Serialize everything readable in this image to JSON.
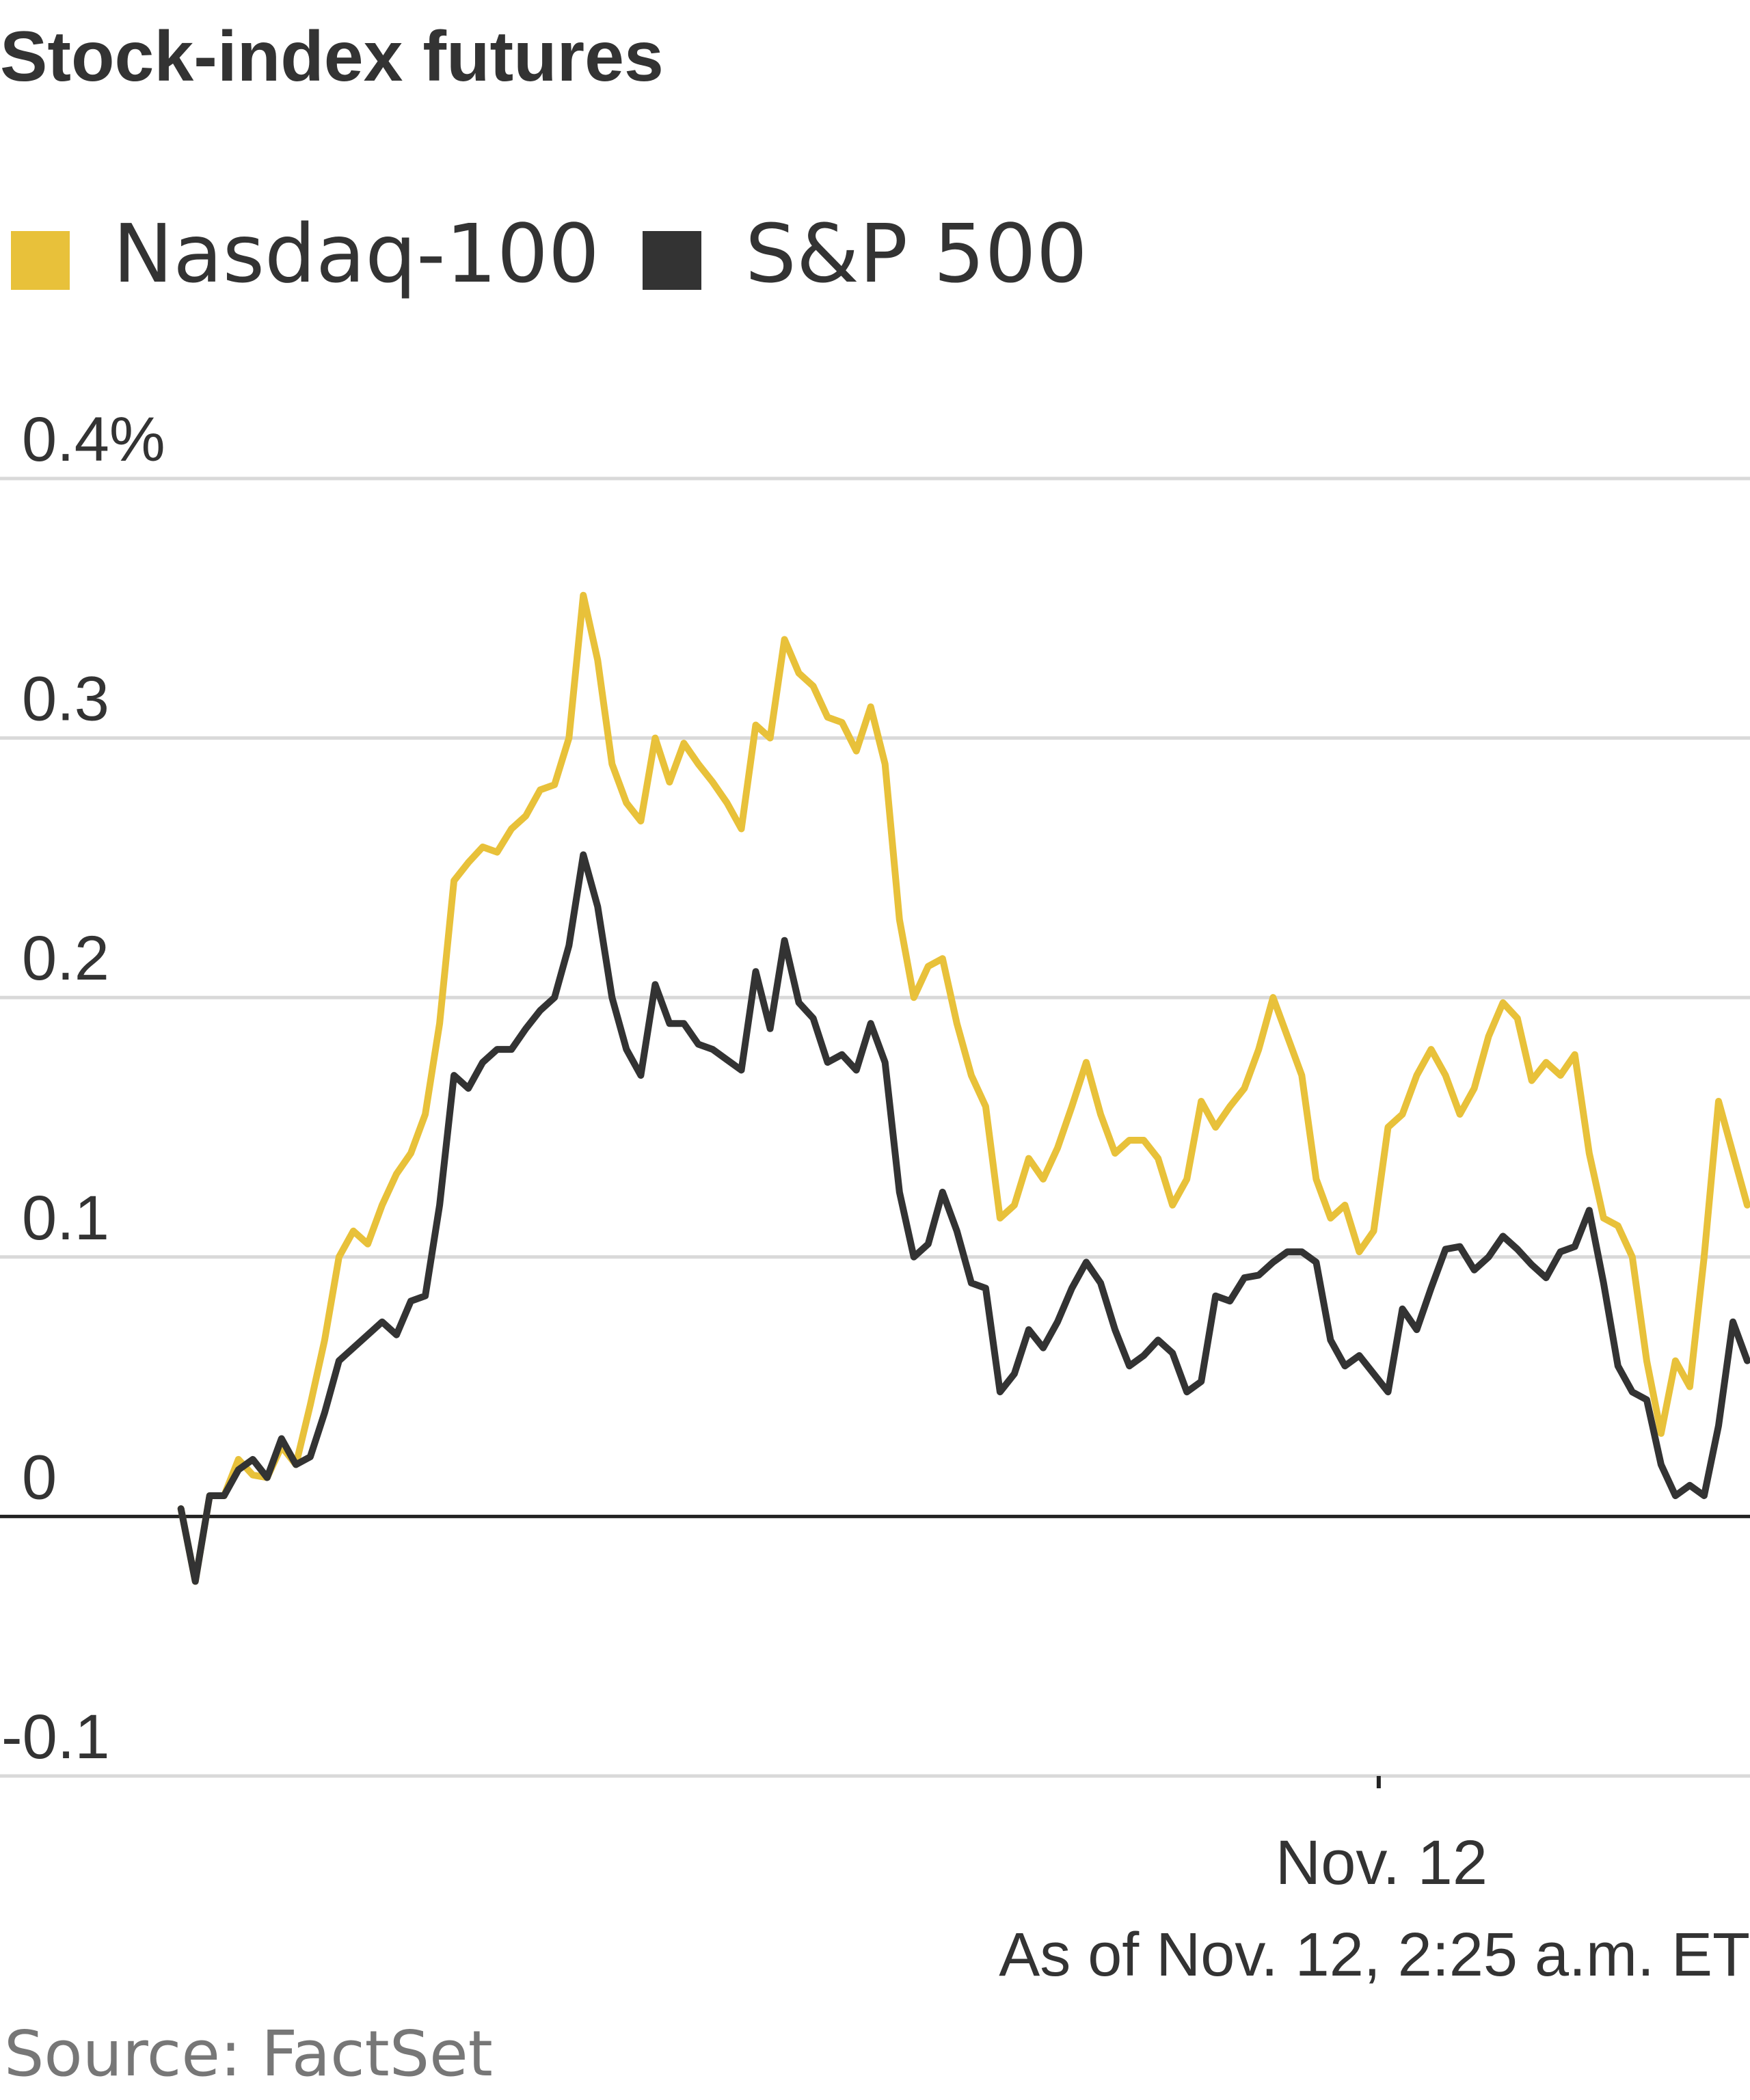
{
  "chart_data": {
    "type": "line",
    "title": "Stock-index futures",
    "ylabel": "",
    "xlabel": "",
    "ylim": [
      -0.1,
      0.4
    ],
    "yticks": [
      {
        "value": 0.4,
        "label": "0.4%"
      },
      {
        "value": 0.3,
        "label": "0.3"
      },
      {
        "value": 0.2,
        "label": "0.2"
      },
      {
        "value": 0.1,
        "label": "0.1"
      },
      {
        "value": 0,
        "label": "0"
      },
      {
        "value": -0.1,
        "label": "-0.1"
      }
    ],
    "xrange": [
      -0.2,
      170
    ],
    "xticks": [
      {
        "value": 130,
        "label": "Nov. 12"
      }
    ],
    "series": [
      {
        "name": "Nasdaq-100",
        "color": "#e8c13a",
        "values": [
          0.003,
          -0.025,
          0.008,
          0.008,
          0.022,
          0.016,
          0.015,
          0.027,
          0.02,
          0.043,
          0.068,
          0.1,
          0.11,
          0.105,
          0.12,
          0.132,
          0.14,
          0.155,
          0.19,
          0.245,
          0.252,
          0.258,
          0.256,
          0.265,
          0.27,
          0.28,
          0.282,
          0.3,
          0.355,
          0.33,
          0.29,
          0.275,
          0.268,
          0.3,
          0.283,
          0.298,
          0.29,
          0.283,
          0.275,
          0.265,
          0.305,
          0.3,
          0.338,
          0.325,
          0.32,
          0.308,
          0.306,
          0.295,
          0.312,
          0.29,
          0.23,
          0.2,
          0.212,
          0.215,
          0.19,
          0.17,
          0.158,
          0.115,
          0.12,
          0.138,
          0.13,
          0.142,
          0.158,
          0.175,
          0.155,
          0.14,
          0.145,
          0.145,
          0.138,
          0.12,
          0.13,
          0.16,
          0.15,
          0.158,
          0.165,
          0.18,
          0.2,
          0.185,
          0.17,
          0.13,
          0.115,
          0.12,
          0.102,
          0.11,
          0.15,
          0.155,
          0.17,
          0.18,
          0.17,
          0.155,
          0.165,
          0.185,
          0.198,
          0.192,
          0.168,
          0.175,
          0.17,
          0.178,
          0.14,
          0.115,
          0.112,
          0.1,
          0.06,
          0.032,
          0.06,
          0.05,
          0.1,
          0.16,
          0.14,
          0.12
        ]
      },
      {
        "name": "S&P 500",
        "color": "#333333",
        "values": [
          0.003,
          -0.025,
          0.008,
          0.008,
          0.018,
          0.022,
          0.015,
          0.03,
          0.02,
          0.023,
          0.04,
          0.06,
          0.065,
          0.07,
          0.075,
          0.07,
          0.083,
          0.085,
          0.12,
          0.17,
          0.165,
          0.175,
          0.18,
          0.18,
          0.188,
          0.195,
          0.2,
          0.22,
          0.255,
          0.235,
          0.2,
          0.18,
          0.17,
          0.205,
          0.19,
          0.19,
          0.182,
          0.18,
          0.176,
          0.172,
          0.21,
          0.188,
          0.222,
          0.198,
          0.192,
          0.175,
          0.178,
          0.172,
          0.19,
          0.175,
          0.125,
          0.1,
          0.105,
          0.125,
          0.11,
          0.09,
          0.088,
          0.048,
          0.055,
          0.072,
          0.065,
          0.075,
          0.088,
          0.098,
          0.09,
          0.072,
          0.058,
          0.062,
          0.068,
          0.063,
          0.048,
          0.052,
          0.085,
          0.083,
          0.092,
          0.093,
          0.098,
          0.102,
          0.102,
          0.098,
          0.068,
          0.058,
          0.062,
          0.055,
          0.048,
          0.08,
          0.072,
          0.088,
          0.103,
          0.104,
          0.095,
          0.1,
          0.108,
          0.103,
          0.097,
          0.092,
          0.102,
          0.104,
          0.118,
          0.09,
          0.058,
          0.048,
          0.045,
          0.02,
          0.008,
          0.012,
          0.008,
          0.035,
          0.075,
          0.06
        ]
      }
    ],
    "legend": [
      "Nasdaq-100",
      "S&P 500"
    ],
    "legend_position": "top-left",
    "grid": true,
    "annotations": {
      "as_of": "As of Nov. 12, 2:25 a.m. ET",
      "source": "Source: FactSet"
    }
  }
}
